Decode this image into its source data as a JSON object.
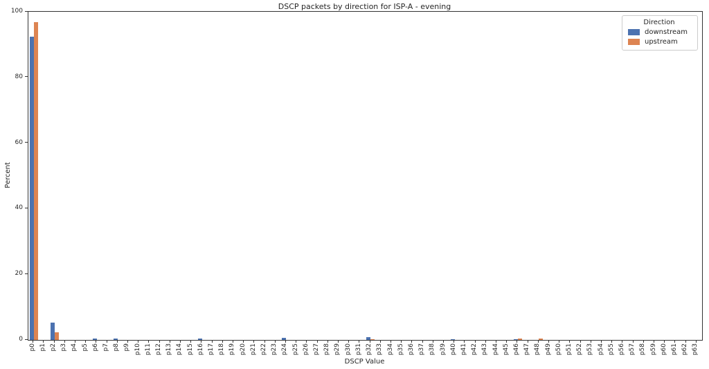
{
  "chart_data": {
    "type": "bar",
    "title": "DSCP packets by direction for ISP-A - evening",
    "xlabel": "DSCP Value",
    "ylabel": "Percent",
    "ylim": [
      0,
      100
    ],
    "yticks": [
      0,
      20,
      40,
      60,
      80,
      100
    ],
    "grid": false,
    "legend_title": "Direction",
    "legend_position": "upper right",
    "categories": [
      "p0",
      "p1",
      "p2",
      "p3",
      "p4",
      "p5",
      "p6",
      "p7",
      "p8",
      "p9",
      "p10",
      "p11",
      "p12",
      "p13",
      "p14",
      "p15",
      "p16",
      "p17",
      "p18",
      "p19",
      "p20",
      "p21",
      "p22",
      "p23",
      "p24",
      "p25",
      "p26",
      "p27",
      "p28",
      "p29",
      "p30",
      "p31",
      "p32",
      "p33",
      "p34",
      "p35",
      "p36",
      "p37",
      "p38",
      "p39",
      "p40",
      "p41",
      "p42",
      "p43",
      "p44",
      "p45",
      "p46",
      "p47",
      "p48",
      "p49",
      "p50",
      "p51",
      "p52",
      "p53",
      "p54",
      "p55",
      "p56",
      "p57",
      "p58",
      "p59",
      "p60",
      "p61",
      "p62",
      "p63"
    ],
    "series": [
      {
        "name": "downstream",
        "color": "#4C72B0",
        "values": [
          92.5,
          0,
          5.2,
          0,
          0,
          0,
          0.45,
          0,
          0.4,
          0,
          0,
          0,
          0,
          0,
          0,
          0,
          0.45,
          0,
          0,
          0,
          0,
          0,
          0,
          0,
          0.6,
          0,
          0,
          0,
          0,
          0,
          0,
          0,
          0.8,
          0,
          0,
          0,
          0,
          0,
          0,
          0,
          0.3,
          0,
          0,
          0,
          0,
          0,
          0.3,
          0,
          0,
          0,
          0,
          0,
          0,
          0,
          0,
          0,
          0,
          0,
          0,
          0,
          0,
          0,
          0,
          0
        ]
      },
      {
        "name": "upstream",
        "color": "#DD8452",
        "values": [
          96.8,
          0,
          2.3,
          0,
          0,
          0,
          0,
          0,
          0,
          0,
          0,
          0,
          0,
          0,
          0,
          0,
          0,
          0,
          0,
          0,
          0,
          0,
          0,
          0,
          0,
          0,
          0,
          0,
          0,
          0,
          0,
          0,
          0.25,
          0,
          0,
          0,
          0,
          0,
          0,
          0,
          0,
          0,
          0,
          0,
          0,
          0,
          0.35,
          0,
          0.35,
          0,
          0,
          0,
          0,
          0,
          0,
          0,
          0,
          0,
          0,
          0,
          0,
          0,
          0,
          0
        ]
      }
    ]
  }
}
